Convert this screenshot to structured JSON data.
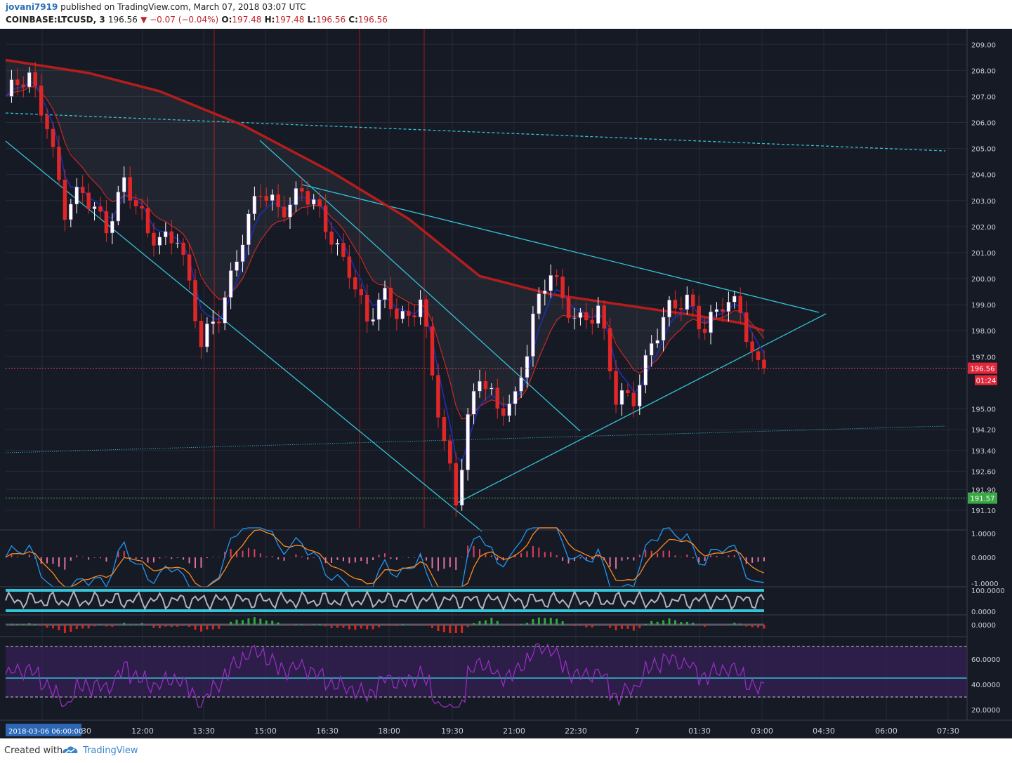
{
  "header": {
    "author": "jovani7919",
    "published_text": "published on TradingView.com, March 07, 2018 03:07 UTC",
    "symbol": "COINBASE:LTCUSD, 3",
    "last": "196.56",
    "change": "▼ −0.07 (−0.04%)",
    "o_label": "O:",
    "o_value": "197.48",
    "h_label": "H:",
    "h_value": "197.48",
    "l_label": "L:",
    "l_value": "196.56",
    "c_label": "C:",
    "c_value": "196.56"
  },
  "footer": {
    "created_with": "Created with",
    "brand": "TradingView"
  },
  "colors": {
    "background": "#161a25",
    "grid": "#262b38",
    "up": "#ffffff",
    "down": "#e02727",
    "ema_long": "#b51d1d",
    "ema_mid": "#c62828",
    "ema_short": "#1a2fb4",
    "trendline": "#35c2d6",
    "support": "#4caf50",
    "rsi": "#9b2fc7",
    "macd": "#2196f3",
    "signal": "#ff8a1c"
  },
  "chart_data": {
    "type": "candlestick",
    "ylim": [
      190.4,
      209.6
    ],
    "last_price_label": "196.56",
    "countdown_label": "01:24",
    "support_label": "191.57",
    "y_ticks": [
      "209.00",
      "208.00",
      "207.00",
      "206.00",
      "205.00",
      "204.00",
      "203.00",
      "202.00",
      "201.00",
      "200.00",
      "199.00",
      "198.00",
      "197.00",
      "195.00",
      "194.20",
      "193.40",
      "192.60",
      "191.90",
      "191.10"
    ],
    "x_ticks": [
      "2018-03-06 06:00:00",
      "12:00",
      "13:30",
      "15:00",
      "16:30",
      "18:00",
      "19:30",
      "21:00",
      "22:30",
      "7",
      "01:30",
      "03:00",
      "04:30",
      "06:00",
      "07:30"
    ],
    "series": [
      {
        "x": 0,
        "y": 207.0
      },
      {
        "x": 4,
        "y": 207.6
      },
      {
        "x": 7,
        "y": 206.2
      },
      {
        "x": 10,
        "y": 202.6
      },
      {
        "x": 13,
        "y": 203.1
      },
      {
        "x": 17,
        "y": 202.2
      },
      {
        "x": 20,
        "y": 203.7
      },
      {
        "x": 24,
        "y": 201.6
      },
      {
        "x": 29,
        "y": 201.8
      },
      {
        "x": 33,
        "y": 197.3
      },
      {
        "x": 36,
        "y": 198.8
      },
      {
        "x": 40,
        "y": 201.6
      },
      {
        "x": 43,
        "y": 203.2
      },
      {
        "x": 46,
        "y": 202.8
      },
      {
        "x": 50,
        "y": 203.4
      },
      {
        "x": 54,
        "y": 201.9
      },
      {
        "x": 58,
        "y": 200.6
      },
      {
        "x": 61,
        "y": 198.2
      },
      {
        "x": 64,
        "y": 199.2
      },
      {
        "x": 68,
        "y": 198.6
      },
      {
        "x": 70,
        "y": 199.3
      },
      {
        "x": 72,
        "y": 196.0
      },
      {
        "x": 74,
        "y": 193.6
      },
      {
        "x": 76,
        "y": 191.6
      },
      {
        "x": 78,
        "y": 194.8
      },
      {
        "x": 80,
        "y": 196.3
      },
      {
        "x": 83,
        "y": 194.7
      },
      {
        "x": 86,
        "y": 195.5
      },
      {
        "x": 89,
        "y": 198.6
      },
      {
        "x": 92,
        "y": 200.1
      },
      {
        "x": 94,
        "y": 199.0
      },
      {
        "x": 97,
        "y": 198.6
      },
      {
        "x": 100,
        "y": 198.8
      },
      {
        "x": 103,
        "y": 195.2
      },
      {
        "x": 106,
        "y": 195.6
      },
      {
        "x": 109,
        "y": 197.6
      },
      {
        "x": 112,
        "y": 198.6
      },
      {
        "x": 115,
        "y": 199.2
      },
      {
        "x": 118,
        "y": 198.3
      },
      {
        "x": 121,
        "y": 198.9
      },
      {
        "x": 124,
        "y": 198.7
      },
      {
        "x": 126,
        "y": 197.2
      },
      {
        "x": 128,
        "y": 196.56
      }
    ],
    "indicators": {
      "macd_ticks": [
        "1.0000",
        "0.0000",
        "-1.0000"
      ],
      "stoch_ticks": [
        "100.0000",
        "0.0000"
      ],
      "momentum_ticks": [
        "0.0000"
      ],
      "rsi_ticks": [
        "60.0000",
        "40.0000",
        "20.0000"
      ]
    }
  }
}
